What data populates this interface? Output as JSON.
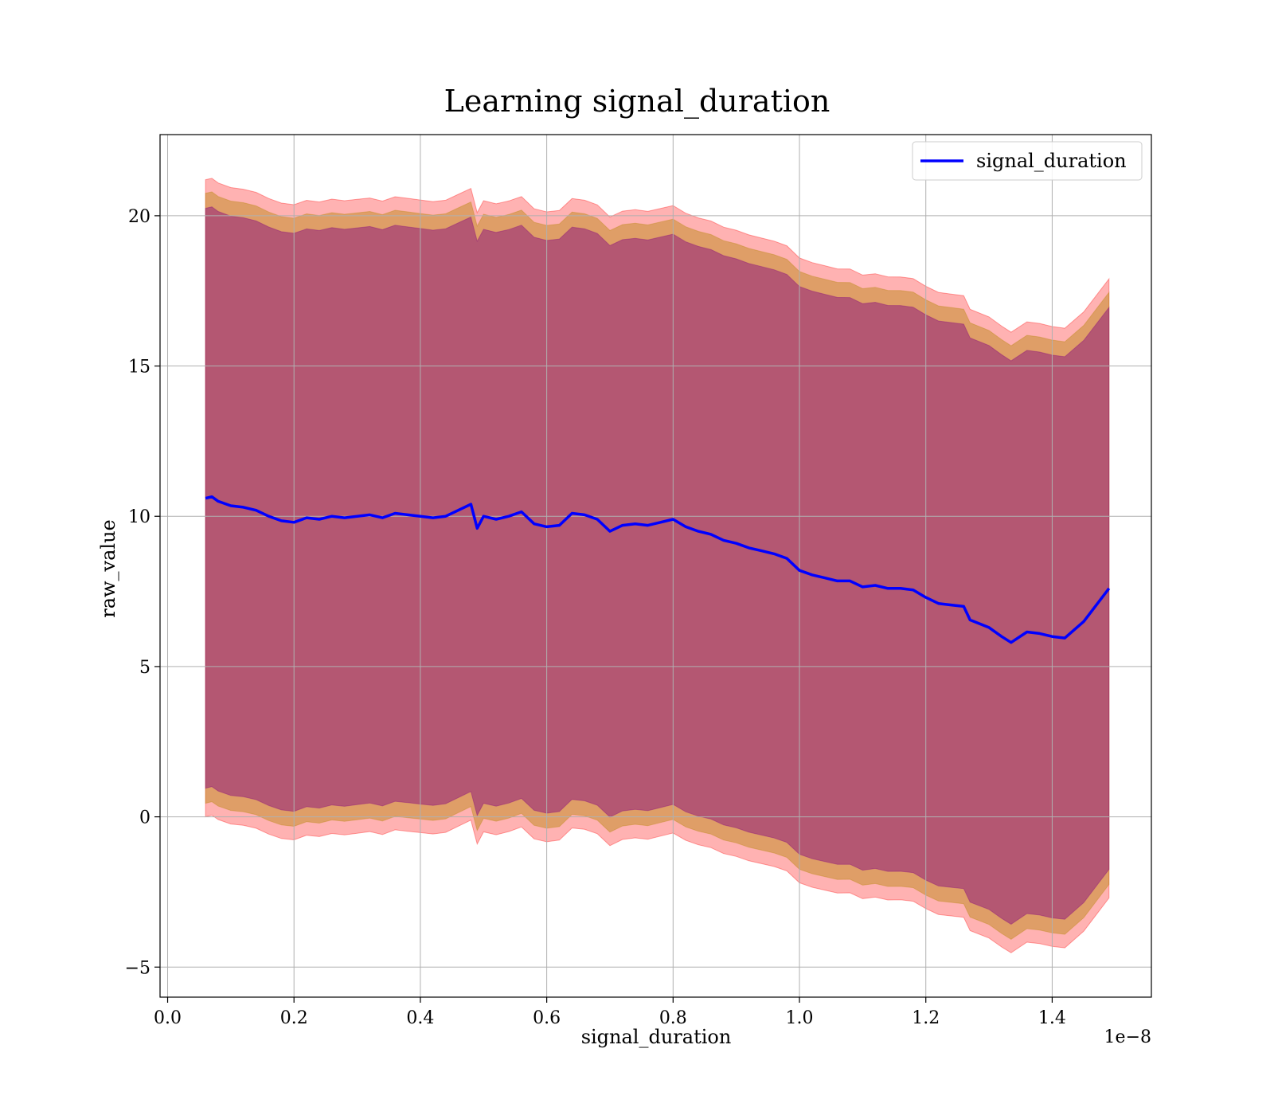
{
  "chart_data": {
    "type": "area",
    "title": "Learning signal_duration",
    "xlabel": "signal_duration",
    "ylabel": "raw_value",
    "x_offset_label": "1e−8",
    "xlim": [
      -1.2e-10,
      1.557e-08
    ],
    "ylim": [
      -6.0,
      22.7
    ],
    "x_ticks": [
      0.0,
      2e-09,
      4e-09,
      6e-09,
      8e-09,
      1e-08,
      1.2e-08,
      1.4e-08
    ],
    "x_tick_labels": [
      "0.0",
      "0.2",
      "0.4",
      "0.6",
      "0.8",
      "1.0",
      "1.2",
      "1.4"
    ],
    "y_ticks": [
      -5,
      0,
      5,
      10,
      15,
      20
    ],
    "y_tick_labels": [
      "−5",
      "0",
      "5",
      "10",
      "15",
      "20"
    ],
    "grid": true,
    "legend_position": "top-right",
    "colors": {
      "line": "#0000ff",
      "band_outer": "#ff0000",
      "band_middle": "#b8860b",
      "band_inner": "#800080",
      "grid": "#b0b0b0"
    },
    "series": [
      {
        "name": "signal_duration",
        "x": [
          6e-10,
          7e-10,
          8e-10,
          1e-09,
          1.2e-09,
          1.4e-09,
          1.6e-09,
          1.8e-09,
          2e-09,
          2.2e-09,
          2.4e-09,
          2.6e-09,
          2.8e-09,
          3e-09,
          3.2e-09,
          3.4e-09,
          3.6e-09,
          3.8e-09,
          4e-09,
          4.2e-09,
          4.4e-09,
          4.6e-09,
          4.8e-09,
          4.9e-09,
          5e-09,
          5.2e-09,
          5.4e-09,
          5.6e-09,
          5.8e-09,
          6e-09,
          6.2e-09,
          6.4e-09,
          6.6e-09,
          6.8e-09,
          7e-09,
          7.2e-09,
          7.4e-09,
          7.6e-09,
          7.8e-09,
          8e-09,
          8.2e-09,
          8.4e-09,
          8.6e-09,
          8.8e-09,
          9e-09,
          9.2e-09,
          9.4e-09,
          9.6e-09,
          9.8e-09,
          1e-08,
          1.02e-08,
          1.04e-08,
          1.06e-08,
          1.08e-08,
          1.1e-08,
          1.12e-08,
          1.14e-08,
          1.16e-08,
          1.18e-08,
          1.2e-08,
          1.22e-08,
          1.24e-08,
          1.26e-08,
          1.27e-08,
          1.3e-08,
          1.32e-08,
          1.335e-08,
          1.36e-08,
          1.38e-08,
          1.4e-08,
          1.42e-08,
          1.45e-08,
          1.49e-08
        ],
        "y": [
          10.6,
          10.65,
          10.5,
          10.35,
          10.3,
          10.2,
          10.0,
          9.85,
          9.8,
          9.95,
          9.9,
          10.0,
          9.95,
          10.0,
          10.05,
          9.95,
          10.1,
          10.05,
          10.0,
          9.95,
          10.0,
          10.2,
          10.4,
          9.6,
          10.0,
          9.9,
          10.0,
          10.15,
          9.75,
          9.65,
          9.7,
          10.1,
          10.05,
          9.9,
          9.5,
          9.7,
          9.75,
          9.7,
          9.8,
          9.9,
          9.65,
          9.5,
          9.4,
          9.2,
          9.1,
          8.95,
          8.85,
          8.75,
          8.6,
          8.2,
          8.05,
          7.95,
          7.85,
          7.85,
          7.65,
          7.7,
          7.6,
          7.6,
          7.55,
          7.3,
          7.1,
          7.05,
          7.0,
          6.55,
          6.3,
          6.0,
          5.8,
          6.15,
          6.1,
          6.0,
          5.95,
          6.5,
          7.6
        ]
      }
    ],
    "bands": [
      {
        "half_width_at_start": 10.6,
        "half_width_at_end": 10.3
      },
      {
        "half_width_at_start": 10.15,
        "half_width_at_end": 9.85
      },
      {
        "half_width_at_start": 9.65,
        "half_width_at_end": 9.35
      }
    ]
  }
}
